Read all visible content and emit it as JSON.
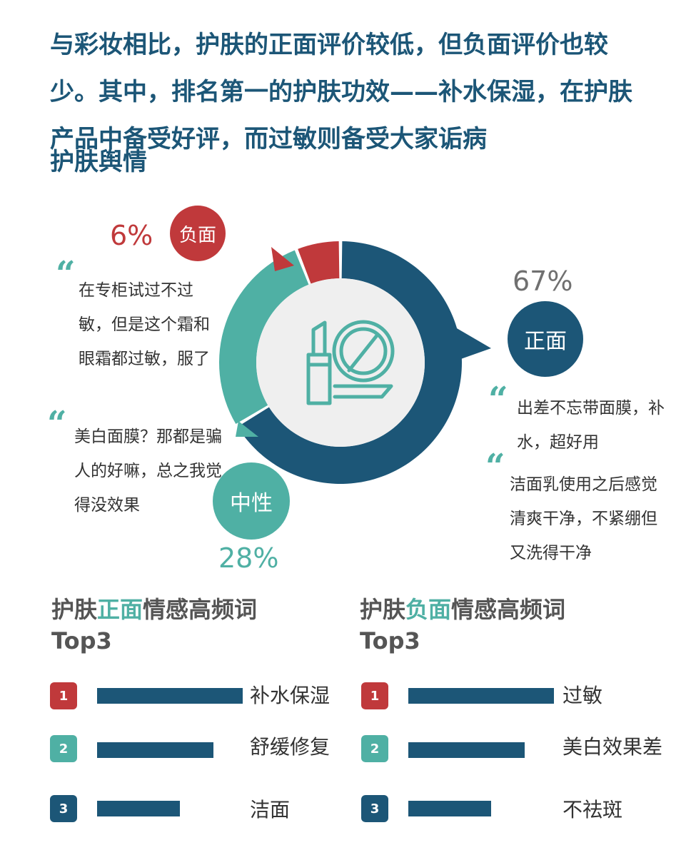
{
  "headline": "与彩妆相比，护肤的正面评价较低，但负面评价也较少。其中，排名第一的护肤功效——补水保湿，在护肤产品中备受好评，而过敏则备受大家诟病",
  "subtitle": "护肤舆情",
  "colors": {
    "positive": "#1c5677",
    "neutral": "#4fb0a4",
    "negative": "#c0393b"
  },
  "chart_data": [
    {
      "type": "pie",
      "categories": [
        "正面",
        "中性",
        "负面"
      ],
      "values": [
        67,
        28,
        6
      ],
      "value_labels": [
        "67%",
        "28%",
        "6%"
      ]
    },
    {
      "type": "bar",
      "title": "护肤正面情感高频词Top3",
      "categories": [
        "补水保湿",
        "舒缓修复",
        "洁面"
      ],
      "values": [
        100,
        80,
        57
      ]
    },
    {
      "type": "bar",
      "title": "护肤负面情感高频词Top3",
      "categories": [
        "过敏",
        "美白效果差",
        "不祛斑"
      ],
      "values": [
        100,
        80,
        57
      ]
    }
  ],
  "quotes": {
    "negative": "在专柜试过不过敏，但是这个霜和眼霜都过敏，服了",
    "neutral": "美白面膜？那都是骗人的好嘛，总之我觉得没效果",
    "positive_1": "出差不忘带面膜，补水，超好用",
    "positive_2": "洁面乳使用之后感觉清爽干净，不紧绷但又洗得干净"
  },
  "positive_section": {
    "prefix": "护肤",
    "accent": "正面",
    "suffix": "情感高频词",
    "line2": "Top3"
  },
  "negative_section": {
    "prefix": "护肤",
    "accent": "负面",
    "suffix": "情感高频词",
    "line2": "Top3"
  },
  "ranks": [
    "1",
    "2",
    "3"
  ],
  "quote_mark": "“",
  "icon": "lipstick-and-compact-icon"
}
